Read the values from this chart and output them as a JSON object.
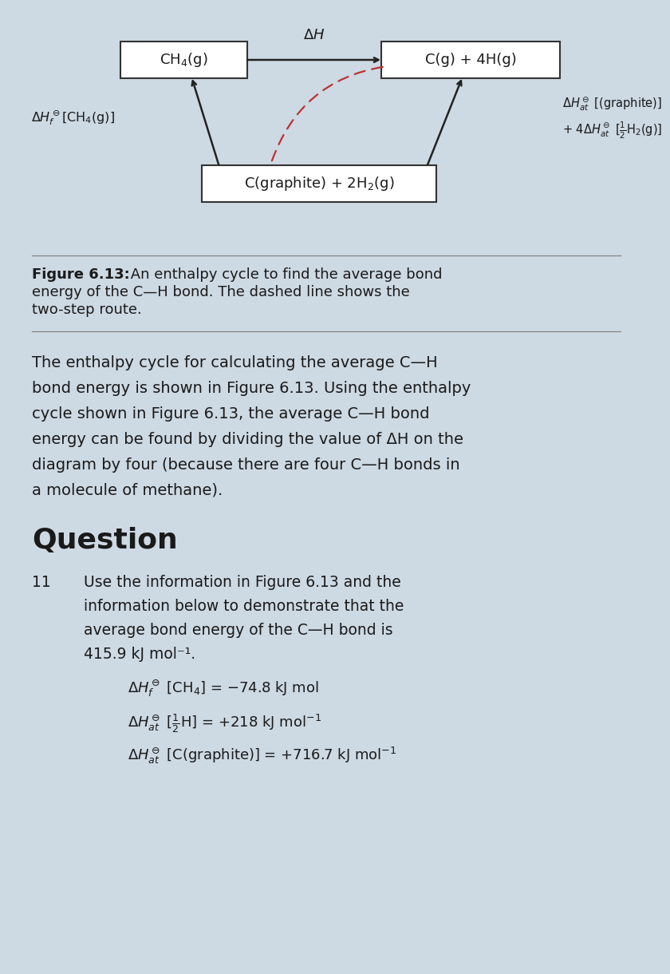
{
  "bg_color": "#cdd9e3",
  "text_color": "#1a1a1a",
  "diagram": {
    "tl_label": "CH$_4$(g)",
    "tr_label": "C(g) + 4H(g)",
    "bot_label": "C(graphite) + 2H$_2$(g)",
    "arrow_top": "$\\Delta H$",
    "label_left": "$\\Delta H_f^\\ominus$[CH$_4$(g)]",
    "label_right_1": "$\\Delta H_{at}^\\ominus$ [(graphite)]",
    "label_right_2": "+ 4$\\Delta H_{at}^\\ominus$ [$\\frac{1}{2}$H$_2$(g)]"
  },
  "fig_bold": "Figure 6.13:",
  "fig_normal": " An enthalpy cycle to find the average bond energy of the C—H bond. The dashed line shows the two-step route.",
  "body": "The enthalpy cycle for calculating the average C—H bond energy is shown in Figure 6.13. Using the enthalpy cycle shown in Figure 6.13, the average C—H bond energy can be found by dividing the value of ΔH on the diagram by four (because there are four C—H bonds in a molecule of methane).",
  "q_header": "Question",
  "q_num": "11",
  "q_body": "Use the information in Figure 6.13 and the information below to demonstrate that the average bond energy of the C—H bond is 415.9 kJ mol⁻¹.",
  "eq1a": "$\\Delta H_f^\\ominus$ [CH$_4$]",
  "eq1b": "= −74.8 kJ mol",
  "eq2a": "$\\Delta H_{at}^\\ominus$ [$\\frac{1}{2}$H]",
  "eq2b": "= +218 kJ mol$^{-1}$",
  "eq3a": "$\\Delta H_{at}^\\ominus$ [C(graphite)]",
  "eq3b": "= +716.7 kJ mol$^{-1}$"
}
